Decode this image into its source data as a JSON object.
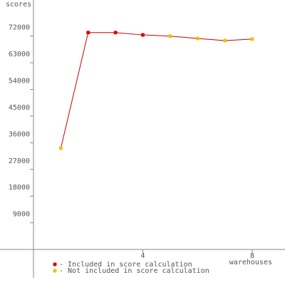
{
  "chart_data": {
    "type": "line",
    "y_label": "scores",
    "x_label": "warehouses",
    "x": [
      1,
      2,
      3,
      4,
      5,
      6,
      7,
      8
    ],
    "series": [
      {
        "name": "- Included in score calculation",
        "color": "#dd0000",
        "values": [
          null,
          73200,
          73200,
          72400,
          null,
          null,
          null,
          null
        ]
      },
      {
        "name": "- Not included in score calculation",
        "color": "#f0c000",
        "values": [
          34200,
          null,
          null,
          null,
          72000,
          71200,
          70500,
          71000
        ]
      }
    ],
    "line_color": "#cc0000",
    "xlim": [
      0,
      9.2
    ],
    "xticks": [
      4,
      8
    ],
    "ylim": [
      -9600,
      84200
    ],
    "yticks": [
      9000,
      18000,
      27000,
      36000,
      45000,
      54000,
      63000,
      72000
    ]
  }
}
